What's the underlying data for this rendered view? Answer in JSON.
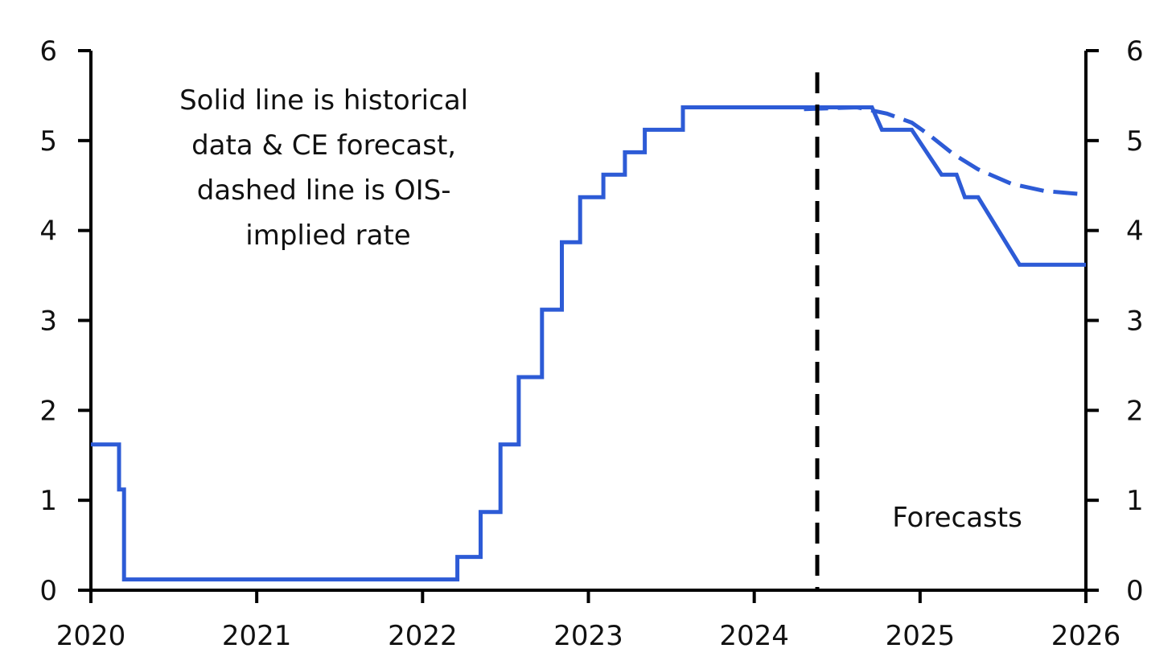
{
  "chart_data": {
    "type": "line",
    "title": "",
    "xlabel": "",
    "ylabel": "",
    "xlim": [
      2020,
      2026
    ],
    "ylim": [
      0,
      6
    ],
    "x_ticks": [
      "2020",
      "2021",
      "2022",
      "2023",
      "2024",
      "2025",
      "2026"
    ],
    "y_ticks_left": [
      "0",
      "1",
      "2",
      "3",
      "4",
      "5",
      "6"
    ],
    "y_ticks_right": [
      "0",
      "1",
      "2",
      "3",
      "4",
      "5",
      "6"
    ],
    "grid": false,
    "legend": "none",
    "forecast_start": 2024.38,
    "series": [
      {
        "style": "solid",
        "color": "#2d5bd6",
        "points": [
          [
            2020.0,
            1.62
          ],
          [
            2020.17,
            1.62
          ],
          [
            2020.17,
            1.12
          ],
          [
            2020.2,
            1.12
          ],
          [
            2020.2,
            0.12
          ],
          [
            2022.21,
            0.12
          ],
          [
            2022.21,
            0.37
          ],
          [
            2022.35,
            0.37
          ],
          [
            2022.35,
            0.87
          ],
          [
            2022.47,
            0.87
          ],
          [
            2022.47,
            1.62
          ],
          [
            2022.58,
            1.62
          ],
          [
            2022.58,
            2.37
          ],
          [
            2022.72,
            2.37
          ],
          [
            2022.72,
            3.12
          ],
          [
            2022.84,
            3.12
          ],
          [
            2022.84,
            3.87
          ],
          [
            2022.95,
            3.87
          ],
          [
            2022.95,
            4.37
          ],
          [
            2023.09,
            4.37
          ],
          [
            2023.09,
            4.62
          ],
          [
            2023.22,
            4.62
          ],
          [
            2023.22,
            4.87
          ],
          [
            2023.34,
            4.87
          ],
          [
            2023.34,
            5.12
          ],
          [
            2023.57,
            5.12
          ],
          [
            2023.57,
            5.37
          ],
          [
            2024.71,
            5.37
          ],
          [
            2024.77,
            5.12
          ],
          [
            2024.95,
            5.12
          ],
          [
            2025.13,
            4.62
          ],
          [
            2025.22,
            4.62
          ],
          [
            2025.27,
            4.37
          ],
          [
            2025.35,
            4.37
          ],
          [
            2025.6,
            3.62
          ],
          [
            2026.0,
            3.62
          ]
        ]
      },
      {
        "style": "dashed",
        "color": "#2d5bd6",
        "points": [
          [
            2024.3,
            5.35
          ],
          [
            2024.62,
            5.37
          ],
          [
            2024.8,
            5.3
          ],
          [
            2024.95,
            5.2
          ],
          [
            2025.05,
            5.07
          ],
          [
            2025.2,
            4.85
          ],
          [
            2025.35,
            4.68
          ],
          [
            2025.55,
            4.52
          ],
          [
            2025.75,
            4.44
          ],
          [
            2026.0,
            4.4
          ]
        ]
      }
    ]
  },
  "annotations": {
    "note_lines": [
      "Solid line is historical",
      "data & CE forecast,",
      "dashed line is OIS-",
      "implied rate"
    ],
    "forecast_label": "Forecasts"
  }
}
